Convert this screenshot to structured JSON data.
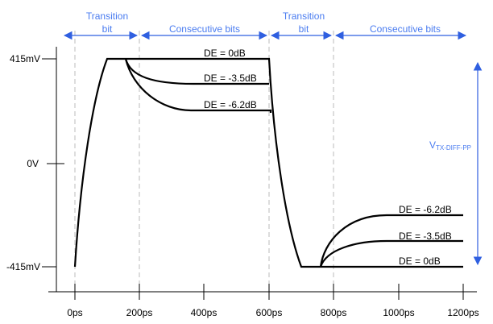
{
  "colors": {
    "annotation": "#4a7cf0",
    "arrow": "#2f5fe0",
    "waveform": "#000000",
    "guide": "#bbbbbb"
  },
  "header": {
    "segments": [
      {
        "line1": "Transition",
        "line2": "bit"
      },
      {
        "line1": "",
        "line2": "Consecutive bits"
      },
      {
        "line1": "Transition",
        "line2": "bit"
      },
      {
        "line1": "",
        "line2": "Consecutive bits"
      }
    ]
  },
  "y_axis": {
    "ticks": [
      "415mV",
      "0V",
      "-415mV"
    ]
  },
  "x_axis": {
    "ticks": [
      "0ps",
      "200ps",
      "400ps",
      "600ps",
      "800ps",
      "1000ps",
      "1200ps"
    ]
  },
  "labels": {
    "top": [
      "DE = 0dB",
      "DE = -3.5dB",
      "DE = -6.2dB"
    ],
    "bottom": [
      "DE = -6.2dB",
      "DE = -3.5dB",
      "DE = 0dB"
    ]
  },
  "swing": {
    "main": "V",
    "sub": "TX-DIFF-PP"
  }
}
